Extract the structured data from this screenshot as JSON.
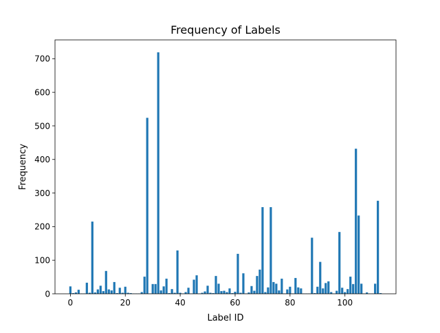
{
  "chart_data": {
    "type": "bar",
    "title": "Frequency of Labels",
    "xlabel": "Label ID",
    "ylabel": "Frequency",
    "xlim": [
      -5.6,
      118.6
    ],
    "ylim": [
      0,
      756
    ],
    "xticks": [
      0,
      20,
      40,
      60,
      80,
      100
    ],
    "yticks": [
      0,
      100,
      200,
      300,
      400,
      500,
      600,
      700
    ],
    "grid": false,
    "bar_color": "#1f77b4",
    "bars": [
      {
        "x": 0,
        "y": 22
      },
      {
        "x": 1,
        "y": 2
      },
      {
        "x": 2,
        "y": 4
      },
      {
        "x": 3,
        "y": 12
      },
      {
        "x": 4,
        "y": 1
      },
      {
        "x": 5,
        "y": 1
      },
      {
        "x": 6,
        "y": 33
      },
      {
        "x": 7,
        "y": 3
      },
      {
        "x": 8,
        "y": 215
      },
      {
        "x": 9,
        "y": 4
      },
      {
        "x": 10,
        "y": 13
      },
      {
        "x": 11,
        "y": 24
      },
      {
        "x": 12,
        "y": 8
      },
      {
        "x": 13,
        "y": 68
      },
      {
        "x": 14,
        "y": 13
      },
      {
        "x": 15,
        "y": 10
      },
      {
        "x": 16,
        "y": 35
      },
      {
        "x": 17,
        "y": 2
      },
      {
        "x": 18,
        "y": 18
      },
      {
        "x": 19,
        "y": 3
      },
      {
        "x": 20,
        "y": 21
      },
      {
        "x": 21,
        "y": 3
      },
      {
        "x": 22,
        "y": 2
      },
      {
        "x": 23,
        "y": 1
      },
      {
        "x": 24,
        "y": 1
      },
      {
        "x": 25,
        "y": 1
      },
      {
        "x": 26,
        "y": 5
      },
      {
        "x": 27,
        "y": 51
      },
      {
        "x": 28,
        "y": 524
      },
      {
        "x": 29,
        "y": 1
      },
      {
        "x": 30,
        "y": 29
      },
      {
        "x": 31,
        "y": 29
      },
      {
        "x": 32,
        "y": 719
      },
      {
        "x": 33,
        "y": 10
      },
      {
        "x": 34,
        "y": 22
      },
      {
        "x": 35,
        "y": 45
      },
      {
        "x": 36,
        "y": 2
      },
      {
        "x": 37,
        "y": 14
      },
      {
        "x": 38,
        "y": 3
      },
      {
        "x": 39,
        "y": 129
      },
      {
        "x": 40,
        "y": 3
      },
      {
        "x": 41,
        "y": 1
      },
      {
        "x": 42,
        "y": 5
      },
      {
        "x": 43,
        "y": 18
      },
      {
        "x": 44,
        "y": 1
      },
      {
        "x": 45,
        "y": 42
      },
      {
        "x": 46,
        "y": 55
      },
      {
        "x": 47,
        "y": 1
      },
      {
        "x": 48,
        "y": 3
      },
      {
        "x": 49,
        "y": 7
      },
      {
        "x": 50,
        "y": 24
      },
      {
        "x": 51,
        "y": 3
      },
      {
        "x": 52,
        "y": 2
      },
      {
        "x": 53,
        "y": 53
      },
      {
        "x": 54,
        "y": 30
      },
      {
        "x": 55,
        "y": 8
      },
      {
        "x": 56,
        "y": 9
      },
      {
        "x": 57,
        "y": 5
      },
      {
        "x": 58,
        "y": 16
      },
      {
        "x": 59,
        "y": 2
      },
      {
        "x": 60,
        "y": 6
      },
      {
        "x": 61,
        "y": 119
      },
      {
        "x": 62,
        "y": 3
      },
      {
        "x": 63,
        "y": 61
      },
      {
        "x": 64,
        "y": 1
      },
      {
        "x": 65,
        "y": 4
      },
      {
        "x": 66,
        "y": 23
      },
      {
        "x": 67,
        "y": 9
      },
      {
        "x": 68,
        "y": 53
      },
      {
        "x": 69,
        "y": 72
      },
      {
        "x": 70,
        "y": 258
      },
      {
        "x": 71,
        "y": 5
      },
      {
        "x": 72,
        "y": 19
      },
      {
        "x": 73,
        "y": 258
      },
      {
        "x": 74,
        "y": 35
      },
      {
        "x": 75,
        "y": 30
      },
      {
        "x": 76,
        "y": 10
      },
      {
        "x": 77,
        "y": 45
      },
      {
        "x": 78,
        "y": 1
      },
      {
        "x": 79,
        "y": 13
      },
      {
        "x": 80,
        "y": 21
      },
      {
        "x": 81,
        "y": 1
      },
      {
        "x": 82,
        "y": 47
      },
      {
        "x": 83,
        "y": 19
      },
      {
        "x": 84,
        "y": 16
      },
      {
        "x": 85,
        "y": 1
      },
      {
        "x": 86,
        "y": 1
      },
      {
        "x": 87,
        "y": 1
      },
      {
        "x": 88,
        "y": 167
      },
      {
        "x": 89,
        "y": 2
      },
      {
        "x": 90,
        "y": 21
      },
      {
        "x": 91,
        "y": 95
      },
      {
        "x": 92,
        "y": 16
      },
      {
        "x": 93,
        "y": 32
      },
      {
        "x": 94,
        "y": 37
      },
      {
        "x": 95,
        "y": 5
      },
      {
        "x": 96,
        "y": 1
      },
      {
        "x": 97,
        "y": 9
      },
      {
        "x": 98,
        "y": 184
      },
      {
        "x": 99,
        "y": 18
      },
      {
        "x": 100,
        "y": 5
      },
      {
        "x": 101,
        "y": 14
      },
      {
        "x": 102,
        "y": 51
      },
      {
        "x": 103,
        "y": 29
      },
      {
        "x": 104,
        "y": 432
      },
      {
        "x": 105,
        "y": 233
      },
      {
        "x": 106,
        "y": 30
      },
      {
        "x": 107,
        "y": 1
      },
      {
        "x": 108,
        "y": 4
      },
      {
        "x": 109,
        "y": 1
      },
      {
        "x": 110,
        "y": 1
      },
      {
        "x": 111,
        "y": 30
      },
      {
        "x": 112,
        "y": 277
      },
      {
        "x": 113,
        "y": 2
      }
    ]
  }
}
